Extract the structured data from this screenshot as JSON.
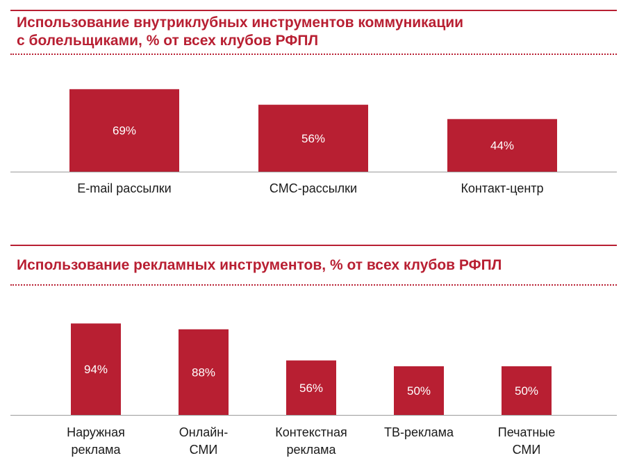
{
  "chart_data": [
    {
      "type": "bar",
      "title": "Использование внутриклубных инструментов коммуникации с болельщиками, % от всех клубов РФПЛ",
      "title_lines": [
        "Использование внутриклубных инструментов коммуникации",
        "с болельщиками, % от всех клубов РФПЛ"
      ],
      "categories": [
        [
          "E-mail рассылки"
        ],
        [
          "СМС-рассылки"
        ],
        [
          "Контакт-центр"
        ]
      ],
      "values": [
        69,
        56,
        44
      ],
      "value_labels": [
        "69%",
        "56%",
        "44%"
      ],
      "unit": "%",
      "ylim": [
        0,
        100
      ],
      "grid": false,
      "bar_color": "#b81f32"
    },
    {
      "type": "bar",
      "title": "Использование рекламных инструментов, % от всех клубов РФПЛ",
      "title_lines": [
        "Использование рекламных инструментов, % от всех клубов РФПЛ"
      ],
      "categories": [
        [
          "Наружная",
          "реклама"
        ],
        [
          "Онлайн-",
          "СМИ"
        ],
        [
          "Контекстная",
          "реклама"
        ],
        [
          "ТВ-реклама"
        ],
        [
          "Печатные",
          "СМИ"
        ]
      ],
      "values": [
        94,
        88,
        56,
        50,
        50
      ],
      "value_labels": [
        "94%",
        "88%",
        "56%",
        "50%",
        "50%"
      ],
      "unit": "%",
      "ylim": [
        0,
        100
      ],
      "grid": false,
      "bar_color": "#b81f32"
    }
  ],
  "colors": {
    "accent": "#b81f32",
    "text": "#1a1a1a",
    "axis": "#9a9a9a"
  }
}
